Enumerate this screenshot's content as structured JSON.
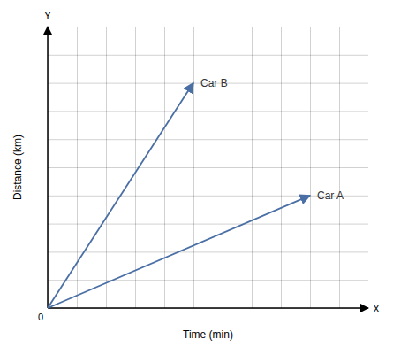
{
  "chart_data": {
    "type": "line",
    "xlabel": "Time (min)",
    "ylabel": "Distance (km)",
    "x_end_label": "x",
    "y_end_label": "Y",
    "origin_label": "0",
    "series": [
      {
        "name": "Car B",
        "color": "#4a6fa5",
        "x": [
          0,
          5
        ],
        "values": [
          0,
          8
        ]
      },
      {
        "name": "Car A",
        "color": "#4a6fa5",
        "x": [
          0,
          9
        ],
        "values": [
          0,
          4
        ]
      }
    ],
    "marker": "arrow",
    "xlim": [
      0,
      11
    ],
    "ylim": [
      0,
      10
    ],
    "xticks": [
      0,
      1,
      2,
      3,
      4,
      5,
      6,
      7,
      8,
      9,
      10
    ],
    "yticks": [
      0,
      1,
      2,
      3,
      4,
      5,
      6,
      7,
      8,
      9,
      10
    ],
    "grid": true,
    "tick_labels": false
  }
}
